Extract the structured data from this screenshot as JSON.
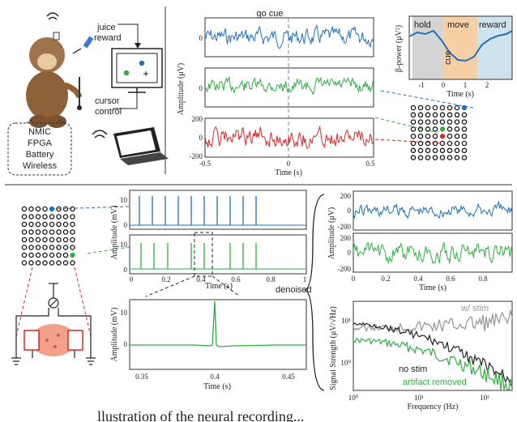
{
  "top_left": {
    "juice_reward": [
      "juice",
      "reward"
    ],
    "cursor_control": [
      "cursor",
      "control"
    ],
    "device_box": [
      "NMIC",
      "FPGA",
      "Battery",
      "Wireless"
    ]
  },
  "top_middle": {
    "go_cue": "go cue",
    "y_label": "Amplitude (μV)",
    "x_label": "Time (s)",
    "y_ticks": [
      "0",
      "200",
      "-200"
    ],
    "x_ticks": [
      "-0.5",
      "0",
      "0.5"
    ],
    "panel_colors": [
      "#1f6fbf",
      "#2fae3f",
      "#e02424"
    ]
  },
  "top_right": {
    "phases": [
      "hold",
      "move",
      "reward"
    ],
    "cue": "cue",
    "y_label": "β-power (μV²)",
    "x_label": "Time (s)",
    "x_ticks": [
      "-1",
      "0",
      "1",
      "2"
    ]
  },
  "bottom_left": {
    "y_label": "Amplitude (mV)",
    "x_label": "Time (s)",
    "y_ticks": [
      "10",
      "0"
    ],
    "x_ticks": [
      "0",
      "0.2",
      "0.4",
      "0.6",
      "0.8",
      "1"
    ],
    "zoom_x_ticks": [
      "0.35",
      "0.4",
      "0.45"
    ],
    "denoised": "denoised"
  },
  "bottom_right": {
    "y_label": "Amplitude (μV)",
    "x_label": "Time (s)",
    "y_ticks": [
      "200",
      "0",
      "-200"
    ],
    "x_ticks": [
      "0",
      "0.2",
      "0.4",
      "0.6",
      "0.8"
    ],
    "psd_y_label": "Signal Strength (μV/√Hz)",
    "psd_x_label": "Frequency (Hz)",
    "psd_x_ticks": [
      "10⁰",
      "10¹",
      "10²"
    ],
    "psd_y_ticks": [
      "10¹",
      "10⁰"
    ],
    "legend": {
      "with_stim": "w/ stim",
      "no_stim": "no stim",
      "artifact_removed": "artifact removed"
    }
  },
  "caption_fragment": "llustration of the neural recording..."
}
